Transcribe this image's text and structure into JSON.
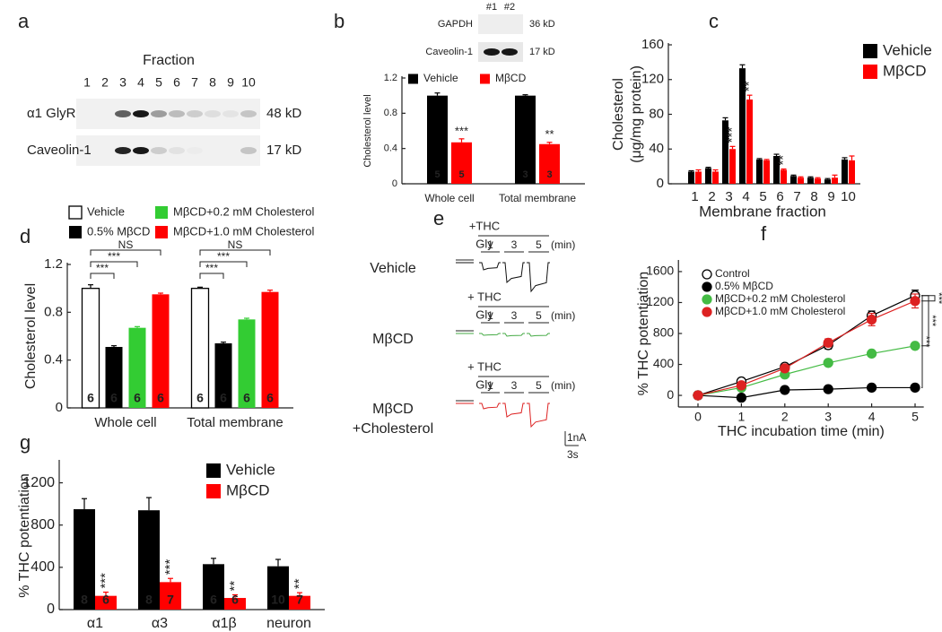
{
  "blot_a": {
    "panel": "a",
    "title": "Fraction",
    "lanes": [
      "1",
      "2",
      "3",
      "4",
      "5",
      "6",
      "7",
      "8",
      "9",
      "10"
    ],
    "rows": [
      {
        "protein": "α1 GlyR",
        "size": "48 kD"
      },
      {
        "protein": "Caveolin-1",
        "size": "17 kD"
      }
    ]
  },
  "blot_b": {
    "panel": "b",
    "lanes": [
      "#1",
      "#2"
    ],
    "rows": [
      {
        "protein": "GAPDH",
        "size": "36 kD"
      },
      {
        "protein": "Caveolin-1",
        "size": "17 kD"
      }
    ]
  },
  "traces_e": {
    "panel": "e",
    "treatment": [
      "+THC",
      "+ THC",
      "+ THC"
    ],
    "agonist": "Gly",
    "times": [
      "1",
      "3",
      "5"
    ],
    "unit": "(min)",
    "conditions": [
      [
        "Vehicle"
      ],
      [
        "MβCD"
      ],
      [
        "MβCD",
        "+Cholesterol"
      ]
    ],
    "scale_current": "1nA",
    "scale_time": "3s"
  },
  "chart_data": [
    {
      "type": "bar",
      "ylabel": "Cholesterol level",
      "categories": [
        "Whole cell",
        "Total membrane"
      ],
      "ylim": [
        0,
        1.2
      ],
      "yticks": [
        0,
        0.4,
        0.8,
        1.2
      ],
      "series": [
        {
          "name": "Vehicle",
          "color": "#000000",
          "values": [
            1.0,
            1.0
          ],
          "errors": [
            0.03,
            0.01
          ],
          "n": [
            5,
            3
          ]
        },
        {
          "name": "MβCD",
          "color": "#ff0000",
          "values": [
            0.47,
            0.45
          ],
          "errors": [
            0.04,
            0.02
          ],
          "n": [
            5,
            3
          ],
          "sig": [
            "***",
            "**"
          ]
        }
      ]
    },
    {
      "panel": "c",
      "type": "bar",
      "ylabel": [
        "Cholesterol",
        "(μg/mg protein)"
      ],
      "xlabel": "Membrane fraction",
      "categories": [
        "1",
        "2",
        "3",
        "4",
        "5",
        "6",
        "7",
        "8",
        "9",
        "10"
      ],
      "ylim": [
        0,
        160
      ],
      "yticks": [
        0,
        40,
        80,
        120,
        160
      ],
      "series": [
        {
          "name": "Vehicle",
          "color": "#000000",
          "values": [
            14,
            18,
            73,
            133,
            28,
            32,
            9,
            7,
            5,
            28
          ],
          "errors": [
            1,
            1,
            3,
            4,
            1,
            2,
            1,
            1,
            1,
            2
          ]
        },
        {
          "name": "MβCD",
          "color": "#ff0000",
          "values": [
            14,
            14,
            40,
            97,
            27,
            16,
            7,
            6,
            7,
            27
          ],
          "errors": [
            2,
            2,
            3,
            5,
            1,
            1,
            1,
            1,
            3,
            5
          ],
          "sig": [
            null,
            null,
            "***",
            "**",
            null,
            "**",
            null,
            null,
            null,
            null
          ]
        }
      ]
    },
    {
      "panel": "d",
      "type": "bar",
      "ylabel": "Cholesterol level",
      "categories": [
        "Whole cell",
        "Total membrane"
      ],
      "ylim": [
        0,
        1.2
      ],
      "yticks": [
        0,
        0.4,
        0.8,
        1.2
      ],
      "series": [
        {
          "name": "Vehicle",
          "color": "#ffffff",
          "values": [
            1.0,
            1.0
          ],
          "errors": [
            0.03,
            0.01
          ],
          "n": [
            6,
            6
          ]
        },
        {
          "name": "0.5% MβCD",
          "color": "#000000",
          "values": [
            0.51,
            0.54
          ],
          "errors": [
            0.01,
            0.01
          ],
          "n": [
            6,
            6
          ]
        },
        {
          "name": "MβCD+0.2 mM Cholesterol",
          "color": "#33cc33",
          "values": [
            0.67,
            0.74
          ],
          "errors": [
            0.01,
            0.01
          ],
          "n": [
            6,
            6
          ]
        },
        {
          "name": "MβCD+1.0 mM Cholesterol",
          "color": "#ff0000",
          "values": [
            0.95,
            0.97
          ],
          "errors": [
            0.01,
            0.015
          ],
          "n": [
            6,
            6
          ]
        }
      ],
      "brackets": [
        [
          "***",
          "***",
          "NS"
        ],
        [
          "***",
          "***",
          "NS"
        ]
      ]
    },
    {
      "panel": "f",
      "type": "line",
      "xlabel": "THC incubation time (min)",
      "ylabel": "% THC potentiation",
      "x": [
        0,
        1,
        2,
        3,
        4,
        5
      ],
      "xlim": [
        -0.45,
        5.2
      ],
      "xticks": [
        0,
        1,
        2,
        3,
        4,
        5
      ],
      "ylim": [
        -150,
        1750
      ],
      "yticks": [
        0,
        400,
        800,
        1200,
        1600
      ],
      "series": [
        {
          "name": "Control",
          "color": "#000000",
          "fill": "#ffffff",
          "values": [
            0,
            180,
            370,
            650,
            1030,
            1290
          ],
          "errors": [
            0,
            40,
            35,
            50,
            60,
            70
          ]
        },
        {
          "name": "0.5% MβCD",
          "color": "#000000",
          "fill": "#000000",
          "values": [
            0,
            -30,
            70,
            80,
            100,
            100
          ],
          "errors": [
            0,
            20,
            15,
            15,
            15,
            15
          ],
          "sig": "***"
        },
        {
          "name": "MβCD+0.2 mM Cholesterol",
          "color": "#44bb44",
          "fill": "#44bb44",
          "values": [
            0,
            100,
            270,
            420,
            540,
            640
          ],
          "errors": [
            0,
            15,
            20,
            20,
            20,
            20
          ],
          "sig": "***"
        },
        {
          "name": "MβCD+1.0 mM Cholesterol",
          "color": "#dd2222",
          "fill": "#dd2222",
          "values": [
            0,
            130,
            350,
            680,
            980,
            1220
          ],
          "errors": [
            0,
            30,
            30,
            50,
            80,
            90
          ],
          "sig": "***"
        }
      ]
    },
    {
      "panel": "g",
      "type": "bar",
      "ylabel": "% THC potentiation",
      "categories": [
        "α1",
        "α3",
        "α1β",
        "neuron"
      ],
      "ylim": [
        0,
        1400
      ],
      "yticks": [
        0,
        400,
        800,
        1200
      ],
      "series": [
        {
          "name": "Vehicle",
          "color": "#000000",
          "values": [
            950,
            940,
            430,
            410
          ],
          "errors": [
            100,
            120,
            55,
            65
          ],
          "n": [
            8,
            8,
            6,
            10
          ]
        },
        {
          "name": "MβCD",
          "color": "#ff0000",
          "values": [
            130,
            260,
            110,
            130
          ],
          "errors": [
            35,
            35,
            30,
            30
          ],
          "n": [
            6,
            7,
            6,
            7
          ],
          "sig": [
            "***",
            "***",
            "**",
            "**"
          ]
        }
      ]
    }
  ]
}
